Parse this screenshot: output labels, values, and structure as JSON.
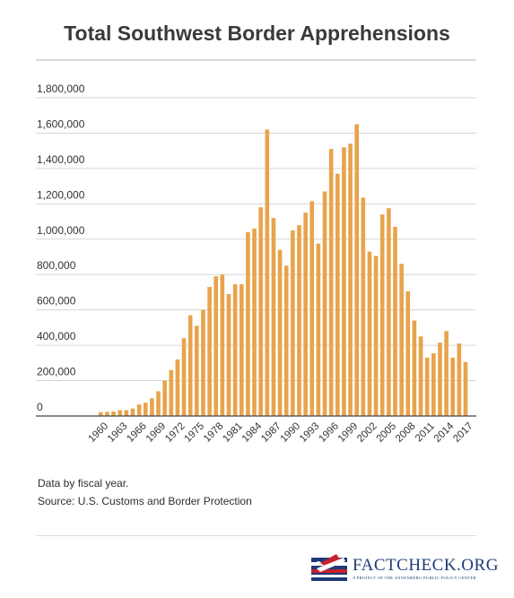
{
  "title": "Total Southwest Border Apprehensions",
  "notes": {
    "line1": "Data by fiscal year.",
    "line2": "Source: U.S. Customs and Border Protection"
  },
  "logo": {
    "text": "FACTCHECK.ORG",
    "tagline": "A PROJECT OF THE ANNENBERG PUBLIC POLICY CENTER"
  },
  "colors": {
    "bar": "#E8A34C",
    "grid": "#d6d6d6",
    "axis": "#444444",
    "logo_blue": "#1f3a78",
    "logo_red": "#c8202f"
  },
  "chart_data": {
    "type": "bar",
    "title": "Total Southwest Border Apprehensions",
    "xlabel": "",
    "ylabel": "",
    "ylim": [
      0,
      1800000
    ],
    "yticks": [
      0,
      200000,
      400000,
      600000,
      800000,
      1000000,
      1200000,
      1400000,
      1600000,
      1800000
    ],
    "ytick_labels": [
      "0",
      "200,000",
      "400,000",
      "600,000",
      "800,000",
      "1,000,000",
      "1,200,000",
      "1,400,000",
      "1,600,000",
      "1,800,000"
    ],
    "grid": true,
    "categories": [
      "1960",
      "1961",
      "1962",
      "1963",
      "1964",
      "1965",
      "1966",
      "1967",
      "1968",
      "1969",
      "1970",
      "1971",
      "1972",
      "1973",
      "1974",
      "1975",
      "1976",
      "1977",
      "1978",
      "1979",
      "1980",
      "1981",
      "1982",
      "1983",
      "1984",
      "1985",
      "1986",
      "1987",
      "1988",
      "1989",
      "1990",
      "1991",
      "1992",
      "1993",
      "1994",
      "1995",
      "1996",
      "1997",
      "1998",
      "1999",
      "2000",
      "2001",
      "2002",
      "2003",
      "2004",
      "2005",
      "2006",
      "2007",
      "2008",
      "2009",
      "2010",
      "2011",
      "2012",
      "2013",
      "2014",
      "2015",
      "2016",
      "2017"
    ],
    "xtick_labels": [
      "1960",
      "1963",
      "1966",
      "1969",
      "1972",
      "1975",
      "1978",
      "1981",
      "1984",
      "1987",
      "1990",
      "1993",
      "1996",
      "1999",
      "2002",
      "2005",
      "2008",
      "2011",
      "2014",
      "2017"
    ],
    "values": [
      22000,
      23000,
      25000,
      33000,
      33000,
      42000,
      65000,
      75000,
      100000,
      140000,
      200000,
      260000,
      320000,
      440000,
      570000,
      510000,
      600000,
      730000,
      790000,
      800000,
      690000,
      745000,
      745000,
      1040000,
      1060000,
      1180000,
      1620000,
      1120000,
      940000,
      850000,
      1050000,
      1080000,
      1150000,
      1215000,
      975000,
      1270000,
      1510000,
      1370000,
      1520000,
      1540000,
      1650000,
      1235000,
      930000,
      905000,
      1140000,
      1175000,
      1070000,
      860000,
      705000,
      540000,
      450000,
      330000,
      355000,
      415000,
      480000,
      330000,
      410000,
      305000
    ]
  }
}
